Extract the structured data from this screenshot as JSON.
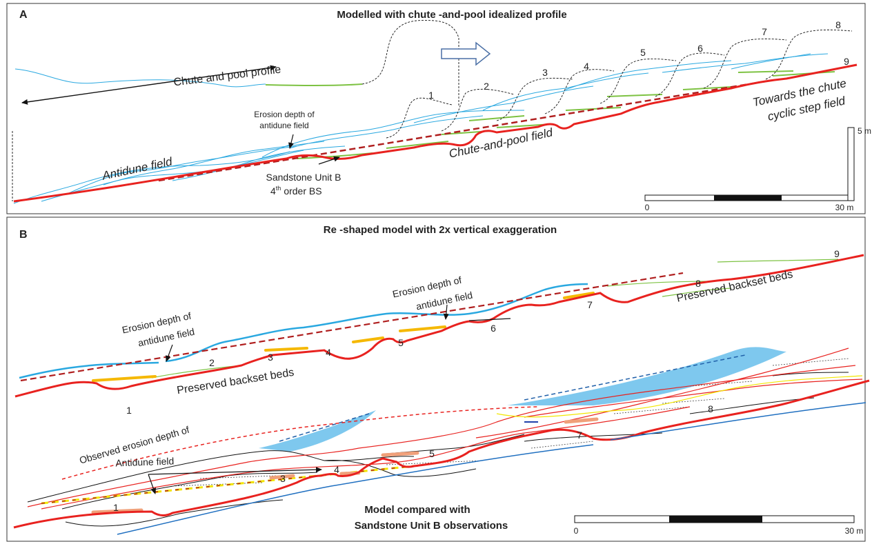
{
  "panel_a": {
    "letter": "A",
    "title": "Modelled with chute -and-pool idealized profile",
    "profile_label": "Chute and pool profile",
    "erosion_label": [
      "Erosion depth of",
      "antidune field"
    ],
    "antidune_label": "Antidune field",
    "unit_label": {
      "line1": "Sandstone Unit B",
      "ordinal": "4",
      "suffix": "th",
      "rest": "order BS"
    },
    "chute_pool_label": "Chute-and-pool field",
    "towards_label": [
      "Towards the chute",
      "cyclic step field"
    ],
    "step_numbers": [
      "1",
      "2",
      "3",
      "4",
      "5",
      "6",
      "7",
      "8",
      "9"
    ],
    "scale": {
      "start": "0",
      "end": "30 m",
      "vertical": "5 m"
    }
  },
  "panel_b": {
    "letter": "B",
    "title": "Re -shaped model  with 2x vertical exaggeration",
    "erosion_label_left": [
      "Erosion depth of",
      "antidune field"
    ],
    "erosion_label_mid": [
      "Erosion depth of",
      "antidune field"
    ],
    "preserved_left": "Preserved backset beds",
    "preserved_right": "Preserved backset beds",
    "step_numbers": [
      "1",
      "2",
      "3",
      "4",
      "5",
      "6",
      "7",
      "8",
      "9"
    ],
    "observed_numbers": [
      "1",
      "3",
      "4",
      "5",
      "7",
      "8"
    ],
    "observed_label": [
      "Observed erosion depth of",
      "Antidune field"
    ],
    "comparison_label": [
      "Model compared with",
      "Sandstone Unit B observations"
    ],
    "scale": {
      "start": "0",
      "end": "30 m"
    }
  }
}
